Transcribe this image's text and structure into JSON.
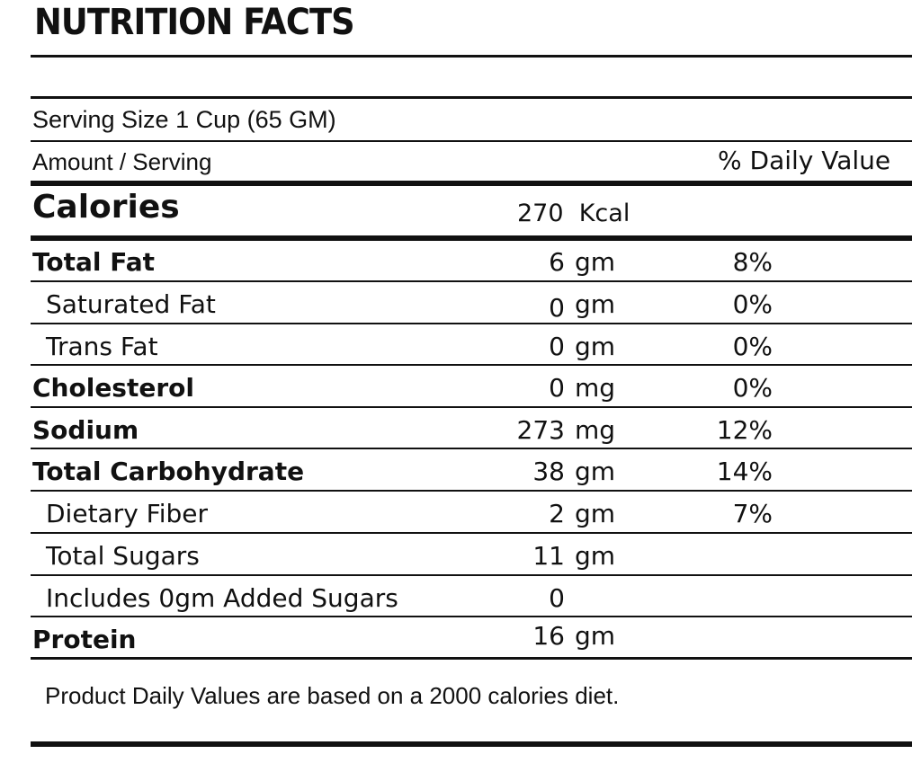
{
  "title": "NUTRITION FACTS",
  "serving_size": "Serving Size 1 Cup  (65 GM)",
  "amount_per_serving": "Amount / Serving",
  "daily_value_header": "% Daily Value",
  "calories": {
    "label": "Calories",
    "value": "270",
    "unit": "Kcal"
  },
  "nutrients": [
    {
      "name": "Total Fat",
      "amount": "6",
      "unit": "gm",
      "dv": "8%"
    },
    {
      "name": "Saturated Fat",
      "amount": "0",
      "unit": "gm",
      "dv": "0%"
    },
    {
      "name": "Trans Fat",
      "amount": "0",
      "unit": "gm",
      "dv": "0%"
    },
    {
      "name": "Cholesterol",
      "amount": "0",
      "unit": "mg",
      "dv": "0%"
    },
    {
      "name": "Sodium",
      "amount": "273",
      "unit": "mg",
      "dv": "12%"
    },
    {
      "name": "Total Carbohydrate",
      "amount": "38",
      "unit": "gm",
      "dv": "14%"
    },
    {
      "name": "Dietary Fiber",
      "amount": "2",
      "unit": "gm",
      "dv": "7%"
    },
    {
      "name": "Total Sugars",
      "amount": "11",
      "unit": "gm",
      "dv": ""
    },
    {
      "name": "Includes 0gm Added Sugars",
      "amount": "0",
      "unit": "",
      "dv": ""
    },
    {
      "name": "Protein",
      "amount": "16",
      "unit": "gm",
      "dv": ""
    }
  ],
  "footnote": "Product Daily Values are based on a 2000 calories diet."
}
